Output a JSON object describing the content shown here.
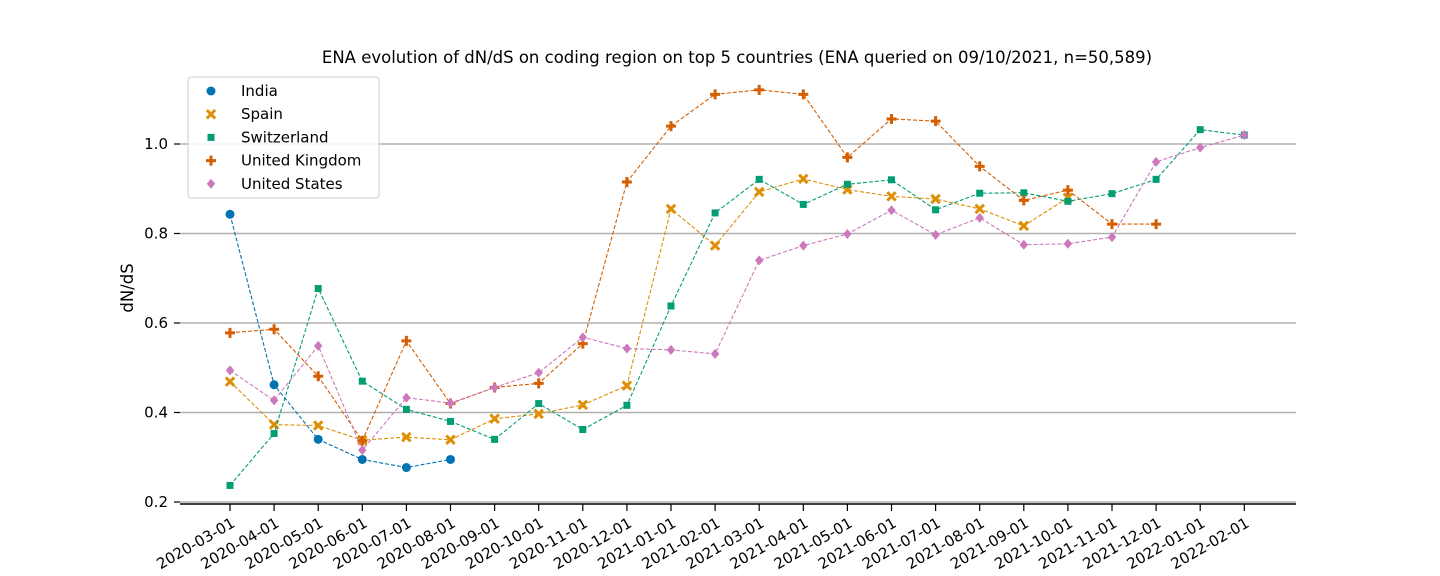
{
  "chart_data": {
    "type": "line",
    "title": "ENA evolution of dN/dS on coding region on top 5 countries (ENA queried on 09/10/2021, n=50,589)",
    "xlabel": "",
    "ylabel": "dN/dS",
    "ylim": [
      0.2,
      1.15
    ],
    "yticks": [
      0.2,
      0.4,
      0.6,
      0.8,
      1.0
    ],
    "ytick_labels": [
      "0.2",
      "0.4",
      "0.6",
      "0.8",
      "1.0"
    ],
    "grid": "horizontal",
    "legend_position": "top-left",
    "x": [
      "2020-03-01",
      "2020-04-01",
      "2020-05-01",
      "2020-06-01",
      "2020-07-01",
      "2020-08-01",
      "2020-09-01",
      "2020-10-01",
      "2020-11-01",
      "2020-12-01",
      "2021-01-01",
      "2021-02-01",
      "2021-03-01",
      "2021-04-01",
      "2021-05-01",
      "2021-06-01",
      "2021-07-01",
      "2021-08-01",
      "2021-09-01",
      "2021-10-01",
      "2021-11-01",
      "2021-12-01",
      "2022-01-01",
      "2022-02-01"
    ],
    "series": [
      {
        "name": "India",
        "color": "#0173b2",
        "marker": "circle",
        "values": [
          0.843,
          0.462,
          0.34,
          0.295,
          0.277,
          0.295,
          null,
          null,
          null,
          null,
          null,
          null,
          null,
          null,
          null,
          null,
          null,
          null,
          null,
          null,
          null,
          null,
          null,
          null
        ]
      },
      {
        "name": "Spain",
        "color": "#de8f05",
        "marker": "x",
        "values": [
          0.469,
          0.373,
          0.371,
          0.338,
          0.345,
          0.339,
          0.386,
          0.397,
          0.417,
          0.46,
          0.855,
          0.773,
          0.893,
          0.922,
          0.898,
          0.883,
          0.877,
          0.855,
          0.817,
          0.88,
          null,
          null,
          null,
          null
        ]
      },
      {
        "name": "Switzerland",
        "color": "#029e73",
        "marker": "square",
        "values": [
          0.237,
          0.353,
          0.677,
          0.47,
          0.407,
          0.38,
          0.34,
          0.42,
          0.362,
          0.416,
          0.638,
          0.846,
          0.921,
          0.865,
          0.91,
          0.92,
          0.853,
          0.89,
          0.891,
          0.872,
          0.889,
          0.921,
          1.032,
          1.02
        ]
      },
      {
        "name": "United Kingdom",
        "color": "#d55e00",
        "marker": "plus",
        "values": [
          0.578,
          0.586,
          0.481,
          0.337,
          0.56,
          0.42,
          0.456,
          0.465,
          0.554,
          0.915,
          1.04,
          1.111,
          1.121,
          1.111,
          0.97,
          1.056,
          1.051,
          0.95,
          0.874,
          0.897,
          0.821,
          0.821,
          null,
          null
        ]
      },
      {
        "name": "United States",
        "color": "#cc78bc",
        "marker": "diamond",
        "values": [
          0.494,
          0.427,
          0.549,
          0.316,
          0.433,
          0.421,
          0.456,
          0.489,
          0.568,
          0.543,
          0.54,
          0.531,
          0.74,
          0.773,
          0.799,
          0.852,
          0.797,
          0.835,
          0.775,
          0.777,
          0.792,
          0.96,
          0.992,
          1.02
        ]
      }
    ]
  }
}
